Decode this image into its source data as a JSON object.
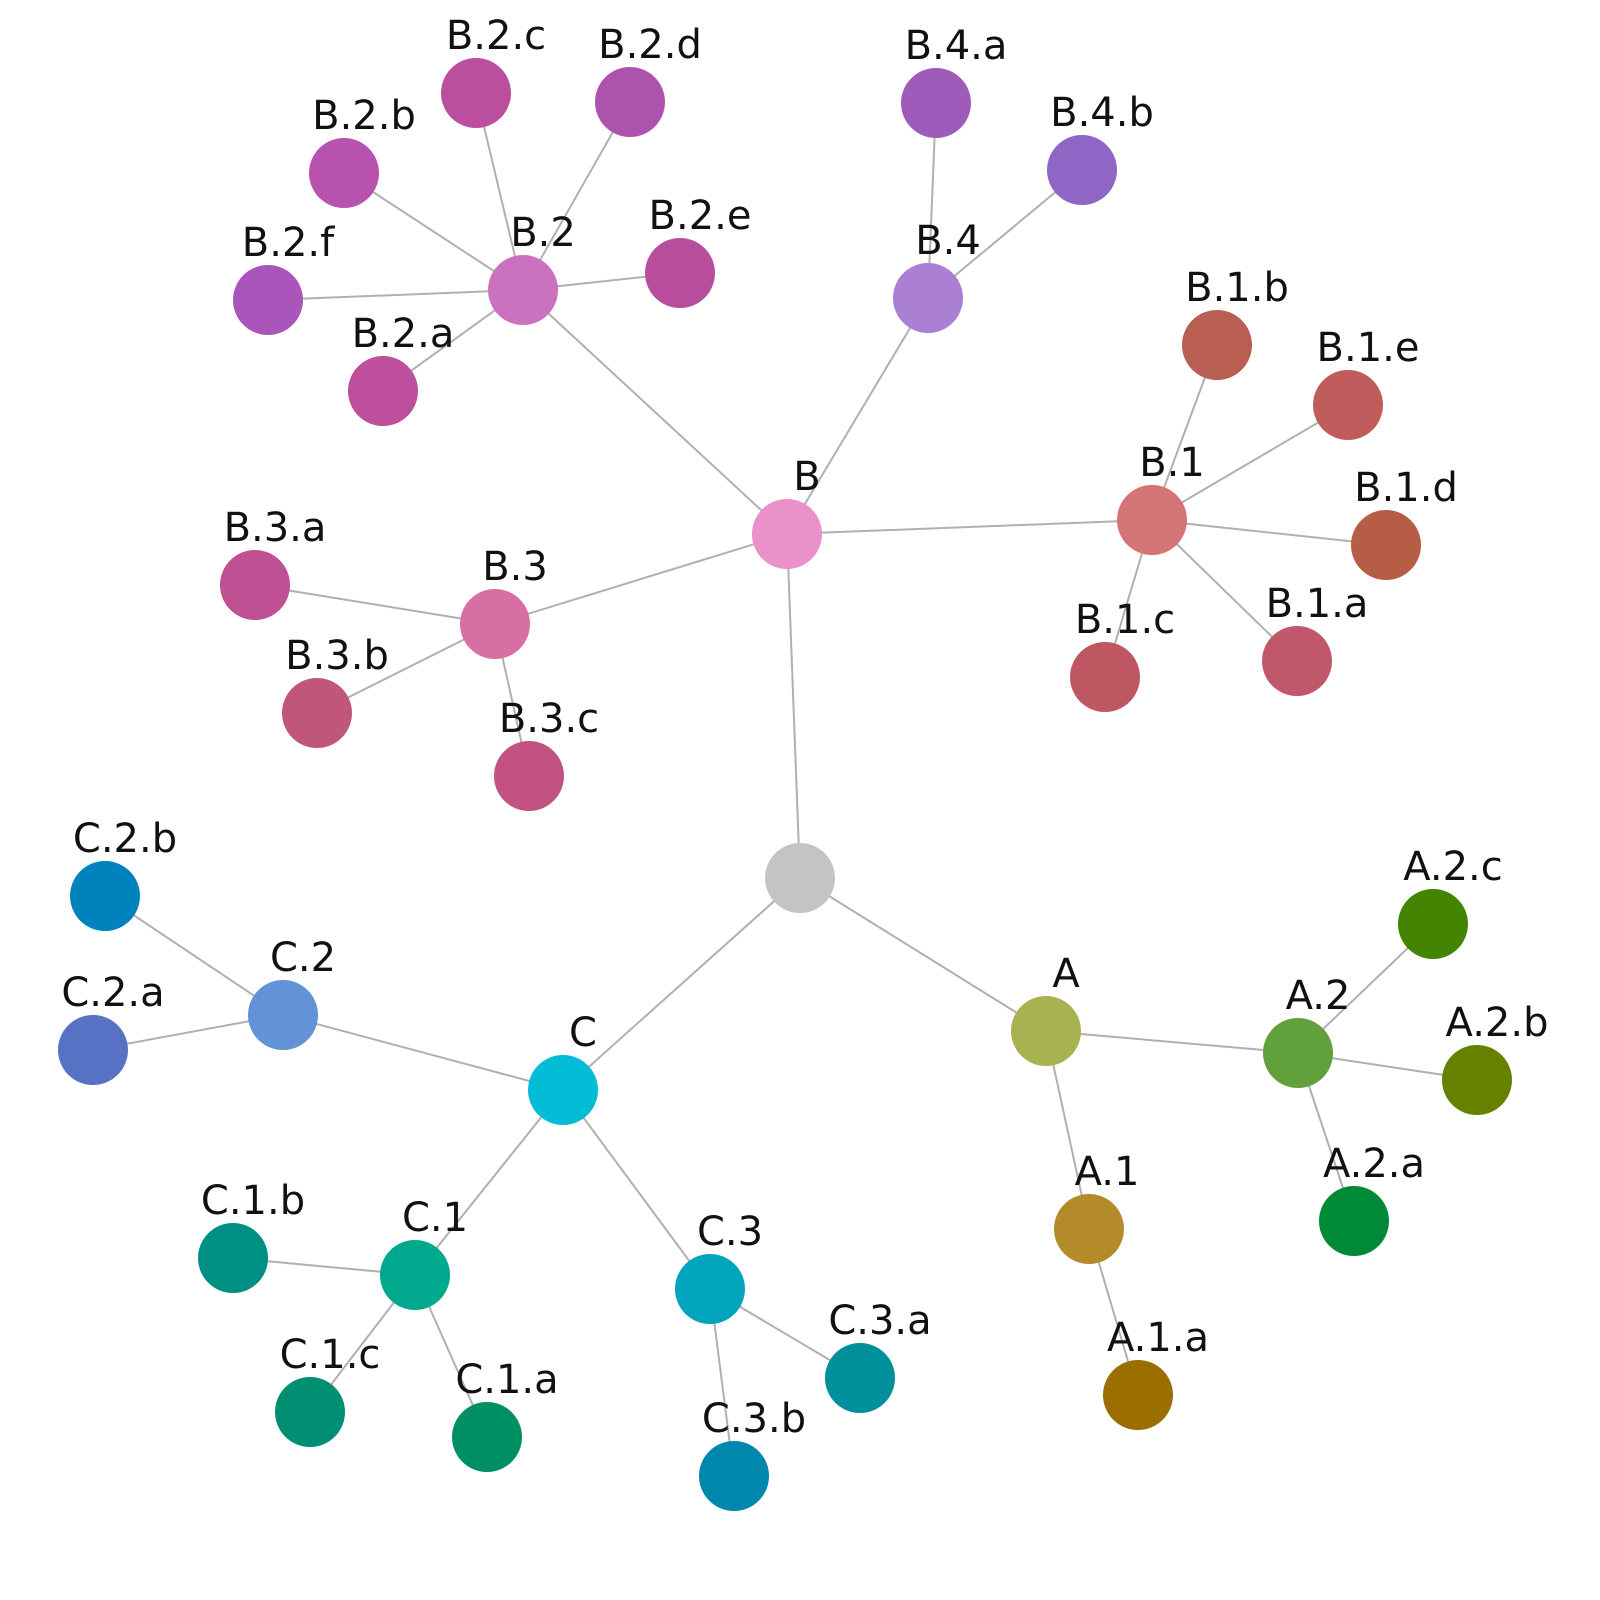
{
  "diagram": {
    "type": "radial-tree",
    "edge_color": "#b0b0b0",
    "nodes": [
      {
        "id": "root",
        "label": "",
        "color": "#c4c4c4"
      },
      {
        "id": "A",
        "label": "A",
        "color": "#a9b251"
      },
      {
        "id": "A.1",
        "label": "A.1",
        "color": "#b38b29"
      },
      {
        "id": "A.1.a",
        "label": "A.1.a",
        "color": "#9a6f00"
      },
      {
        "id": "A.2",
        "label": "A.2",
        "color": "#62a03c"
      },
      {
        "id": "A.2.a",
        "label": "A.2.a",
        "color": "#008a37"
      },
      {
        "id": "A.2.b",
        "label": "A.2.b",
        "color": "#668000"
      },
      {
        "id": "A.2.c",
        "label": "A.2.c",
        "color": "#438500"
      },
      {
        "id": "B",
        "label": "B",
        "color": "#e991c8"
      },
      {
        "id": "B.1",
        "label": "B.1",
        "color": "#d37575"
      },
      {
        "id": "B.1.a",
        "label": "B.1.a",
        "color": "#c0576a"
      },
      {
        "id": "B.1.b",
        "label": "B.1.b",
        "color": "#b95e52"
      },
      {
        "id": "B.1.c",
        "label": "B.1.c",
        "color": "#bf5762"
      },
      {
        "id": "B.1.d",
        "label": "B.1.d",
        "color": "#b55e45"
      },
      {
        "id": "B.1.e",
        "label": "B.1.e",
        "color": "#c05c5c"
      },
      {
        "id": "B.2",
        "label": "B.2",
        "color": "#cb72bf"
      },
      {
        "id": "B.2.a",
        "label": "B.2.a",
        "color": "#bd4f9d"
      },
      {
        "id": "B.2.b",
        "label": "B.2.b",
        "color": "#b753ae"
      },
      {
        "id": "B.2.c",
        "label": "B.2.c",
        "color": "#bb4f9e"
      },
      {
        "id": "B.2.d",
        "label": "B.2.d",
        "color": "#ad53ae"
      },
      {
        "id": "B.2.e",
        "label": "B.2.e",
        "color": "#b94e9e"
      },
      {
        "id": "B.2.f",
        "label": "B.2.f",
        "color": "#aa55b9"
      },
      {
        "id": "B.3",
        "label": "B.3",
        "color": "#d770a2"
      },
      {
        "id": "B.3.a",
        "label": "B.3.a",
        "color": "#be5093"
      },
      {
        "id": "B.3.b",
        "label": "B.3.b",
        "color": "#c05778"
      },
      {
        "id": "B.3.c",
        "label": "B.3.c",
        "color": "#c15282"
      },
      {
        "id": "B.4",
        "label": "B.4",
        "color": "#ab7fd3"
      },
      {
        "id": "B.4.a",
        "label": "B.4.a",
        "color": "#9f5bb9"
      },
      {
        "id": "B.4.b",
        "label": "B.4.b",
        "color": "#8d66c6"
      },
      {
        "id": "C",
        "label": "C",
        "color": "#03bcd5"
      },
      {
        "id": "C.1",
        "label": "C.1",
        "color": "#00a98e"
      },
      {
        "id": "C.1.a",
        "label": "C.1.a",
        "color": "#008f63"
      },
      {
        "id": "C.1.b",
        "label": "C.1.b",
        "color": "#009083"
      },
      {
        "id": "C.1.c",
        "label": "C.1.c",
        "color": "#008f72"
      },
      {
        "id": "C.2",
        "label": "C.2",
        "color": "#6293d6"
      },
      {
        "id": "C.2.a",
        "label": "C.2.a",
        "color": "#5772c4"
      },
      {
        "id": "C.2.b",
        "label": "C.2.b",
        "color": "#0083bd"
      },
      {
        "id": "C.3",
        "label": "C.3",
        "color": "#00a5bd"
      },
      {
        "id": "C.3.a",
        "label": "C.3.a",
        "color": "#00909b"
      },
      {
        "id": "C.3.b",
        "label": "C.3.b",
        "color": "#0087ad"
      }
    ],
    "edges": [
      [
        "root",
        "A"
      ],
      [
        "root",
        "B"
      ],
      [
        "root",
        "C"
      ],
      [
        "A",
        "A.1"
      ],
      [
        "A",
        "A.2"
      ],
      [
        "A.1",
        "A.1.a"
      ],
      [
        "A.2",
        "A.2.a"
      ],
      [
        "A.2",
        "A.2.b"
      ],
      [
        "A.2",
        "A.2.c"
      ],
      [
        "B",
        "B.1"
      ],
      [
        "B",
        "B.2"
      ],
      [
        "B",
        "B.3"
      ],
      [
        "B",
        "B.4"
      ],
      [
        "B.1",
        "B.1.a"
      ],
      [
        "B.1",
        "B.1.b"
      ],
      [
        "B.1",
        "B.1.c"
      ],
      [
        "B.1",
        "B.1.d"
      ],
      [
        "B.1",
        "B.1.e"
      ],
      [
        "B.2",
        "B.2.a"
      ],
      [
        "B.2",
        "B.2.b"
      ],
      [
        "B.2",
        "B.2.c"
      ],
      [
        "B.2",
        "B.2.d"
      ],
      [
        "B.2",
        "B.2.e"
      ],
      [
        "B.2",
        "B.2.f"
      ],
      [
        "B.3",
        "B.3.a"
      ],
      [
        "B.3",
        "B.3.b"
      ],
      [
        "B.3",
        "B.3.c"
      ],
      [
        "B.4",
        "B.4.a"
      ],
      [
        "B.4",
        "B.4.b"
      ],
      [
        "C",
        "C.1"
      ],
      [
        "C",
        "C.2"
      ],
      [
        "C",
        "C.3"
      ],
      [
        "C.1",
        "C.1.a"
      ],
      [
        "C.1",
        "C.1.b"
      ],
      [
        "C.1",
        "C.1.c"
      ],
      [
        "C.2",
        "C.2.a"
      ],
      [
        "C.2",
        "C.2.b"
      ],
      [
        "C.3",
        "C.3.a"
      ],
      [
        "C.3",
        "C.3.b"
      ]
    ]
  }
}
